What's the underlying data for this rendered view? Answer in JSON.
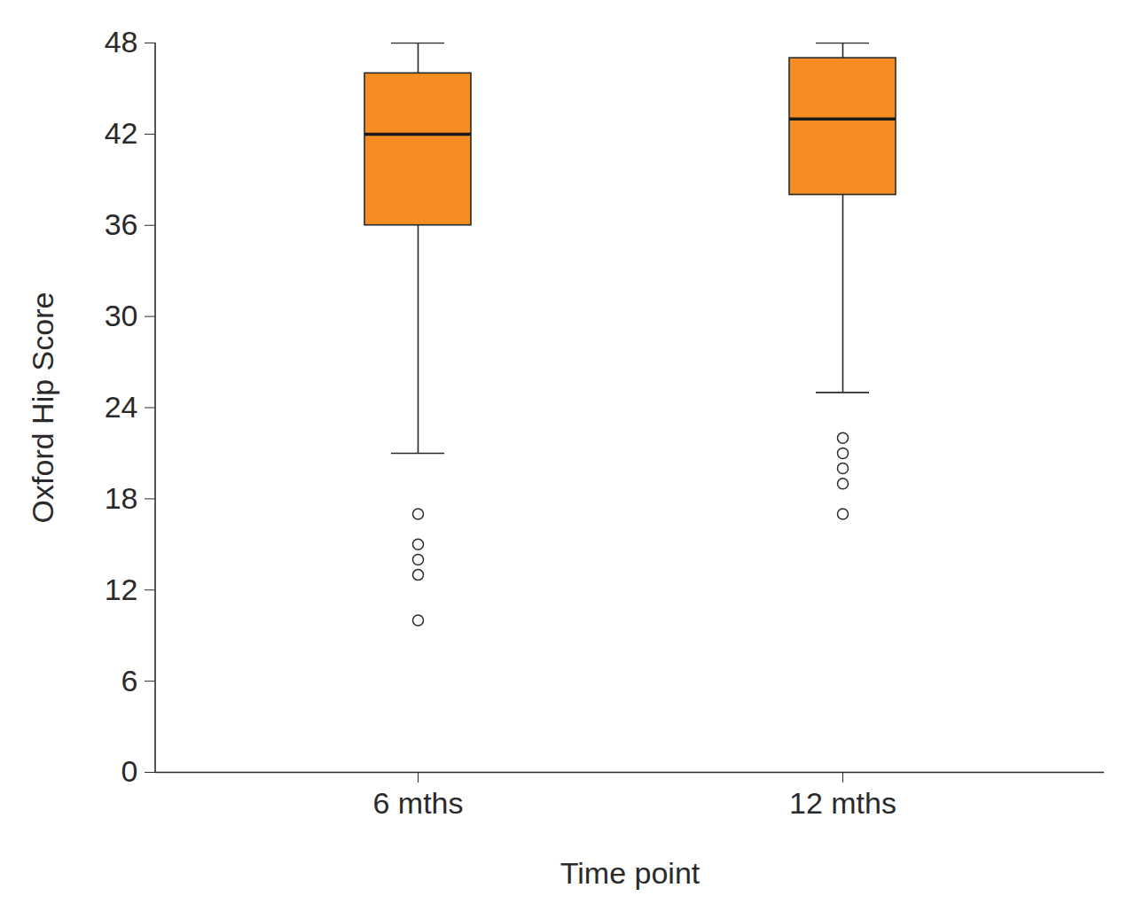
{
  "chart_data": {
    "type": "box",
    "x_label": "Time point",
    "y_label": "Oxford Hip Score",
    "categories": [
      "6 mths",
      "12 mths"
    ],
    "boxes": [
      {
        "whisker_low": 21,
        "q1": 36,
        "median": 42,
        "q3": 46,
        "whisker_high": 48,
        "outliers": [
          17,
          15,
          14,
          13,
          10
        ]
      },
      {
        "whisker_low": 25,
        "q1": 38,
        "median": 43,
        "q3": 47,
        "whisker_high": 48,
        "outliers": [
          22,
          21,
          20,
          19,
          17
        ]
      }
    ],
    "color": "#f58d22",
    "ylim": [
      0,
      48
    ],
    "yticks": [
      0,
      6,
      12,
      18,
      24,
      30,
      36,
      42,
      48
    ],
    "grid": false
  }
}
